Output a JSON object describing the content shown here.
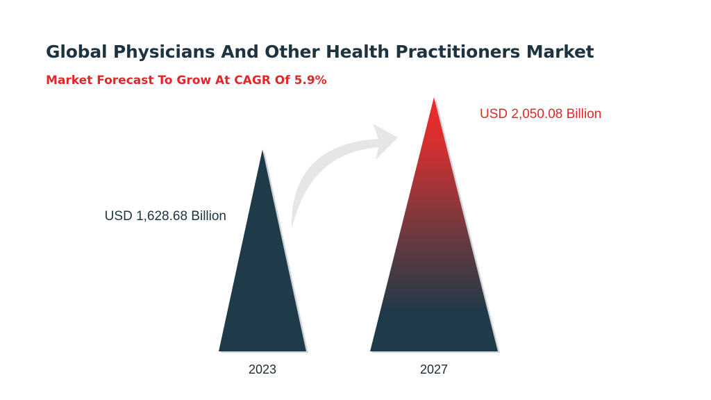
{
  "header": {
    "title": "Global Physicians And Other Health Practitioners Market",
    "subtitle": "Market Forecast To Grow At CAGR Of 5.9%"
  },
  "colors": {
    "title": "#1e3340",
    "accent_red": "#e0282a",
    "dark_teal": "#1f3a48",
    "arrow": "#e6e6e6"
  },
  "chart_data": {
    "type": "bar",
    "title": "Global Physicians And Other Health Practitioners Market",
    "subtitle": "Market Forecast To Grow At CAGR Of 5.9%",
    "categories": [
      "2023",
      "2027"
    ],
    "values": [
      1628.68,
      2050.08
    ],
    "value_labels": [
      "USD 1,628.68 Billion",
      "USD 2,050.08 Billion"
    ],
    "unit": "USD Billion",
    "cagr": "5.9%",
    "xlabel": "",
    "ylabel": "",
    "grid": false,
    "legend": "none"
  }
}
